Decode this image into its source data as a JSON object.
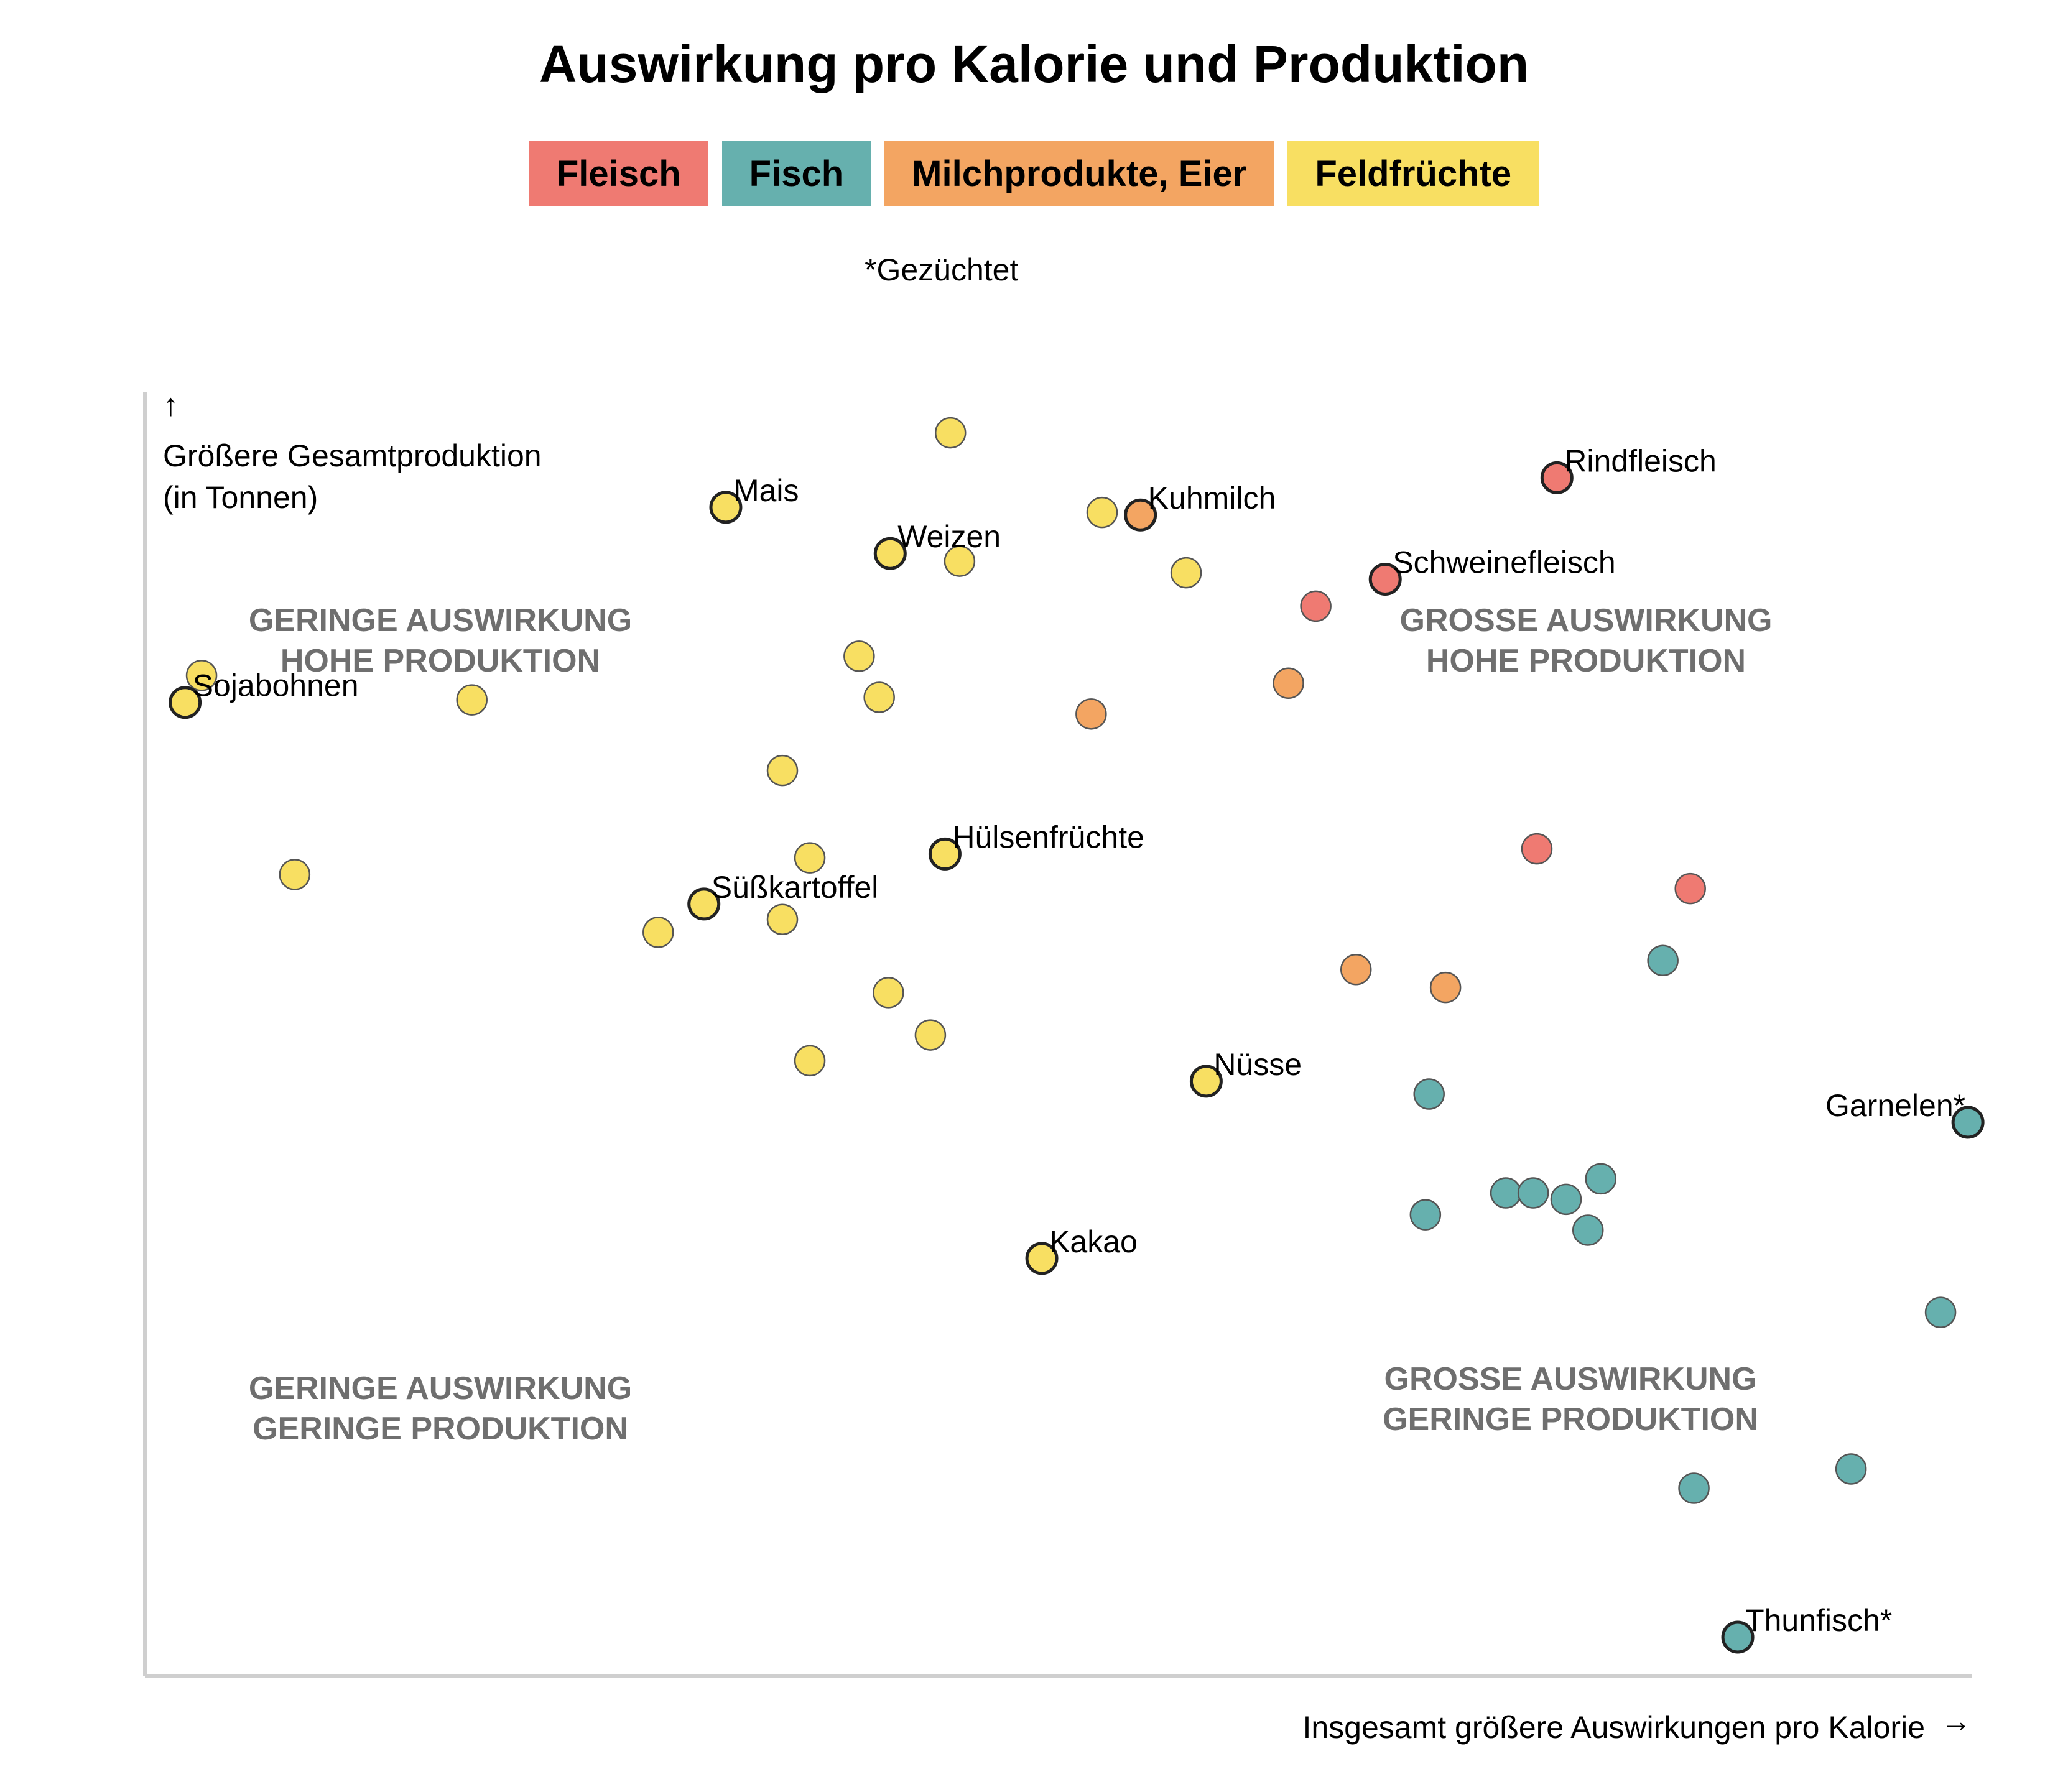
{
  "title": "Auswirkung pro Kalorie und Produktion",
  "legend": [
    {
      "label": "Fleisch",
      "color": "#ef7a72"
    },
    {
      "label": "Fisch",
      "color": "#66b0ae"
    },
    {
      "label": "Milchprodukte, Eier",
      "color": "#f3a562"
    },
    {
      "label": "Feldfrüchte",
      "color": "#f8df62"
    }
  ],
  "note": "*Gezüchtet",
  "y_axis_label_line1": "Größere Gesamtproduktion",
  "y_axis_label_line2": "(in Tonnen)",
  "x_axis_label": "Insgesamt größere Auswirkungen pro Kalorie",
  "quadrants": {
    "top_left": [
      "GERINGE AUSWIRKUNG",
      "HOHE PRODUKTION"
    ],
    "top_right": [
      "GROSSE AUSWIRKUNG",
      "HOHE PRODUKTION"
    ],
    "bottom_left": [
      "GERINGE AUSWIRKUNG",
      "GERINGE PRODUKTION"
    ],
    "bottom_right": [
      "GROSSE AUSWIRKUNG",
      "GERINGE PRODUKTION"
    ]
  },
  "chart_data": {
    "type": "scatter",
    "title": "Auswirkung pro Kalorie und Produktion",
    "xlabel": "Insgesamt größere Auswirkungen pro Kalorie",
    "ylabel": "Größere Gesamtproduktion (in Tonnen)",
    "xlim": [
      0,
      100
    ],
    "ylim": [
      0,
      100
    ],
    "grid": false,
    "legend_position": "top",
    "series": [
      {
        "name": "Fleisch",
        "color": "#ef7a72",
        "points": [
          {
            "x": 77.3,
            "y": 93.3,
            "label": "Rindfleisch"
          },
          {
            "x": 67.9,
            "y": 85.4,
            "label": "Schweinefleisch"
          },
          {
            "x": 64.1,
            "y": 83.3
          },
          {
            "x": 76.2,
            "y": 64.4
          },
          {
            "x": 84.6,
            "y": 61.3
          }
        ]
      },
      {
        "name": "Fisch",
        "color": "#66b0ae",
        "points": [
          {
            "x": 83.1,
            "y": 55.7
          },
          {
            "x": 70.3,
            "y": 45.3
          },
          {
            "x": 99.8,
            "y": 43.1,
            "label": "Garnelen*"
          },
          {
            "x": 79.7,
            "y": 38.7
          },
          {
            "x": 74.5,
            "y": 37.6
          },
          {
            "x": 76.0,
            "y": 37.6
          },
          {
            "x": 77.8,
            "y": 37.1
          },
          {
            "x": 70.1,
            "y": 35.9
          },
          {
            "x": 79.0,
            "y": 34.7
          },
          {
            "x": 98.3,
            "y": 28.3
          },
          {
            "x": 93.4,
            "y": 16.1
          },
          {
            "x": 84.8,
            "y": 14.6
          },
          {
            "x": 87.2,
            "y": 3.0,
            "label": "Thunfisch*"
          }
        ]
      },
      {
        "name": "Milchprodukte, Eier",
        "color": "#f3a562",
        "points": [
          {
            "x": 54.5,
            "y": 90.4,
            "label": "Kuhmilch"
          },
          {
            "x": 62.6,
            "y": 77.3
          },
          {
            "x": 51.8,
            "y": 74.9
          },
          {
            "x": 66.3,
            "y": 55.0
          },
          {
            "x": 71.2,
            "y": 53.6
          }
        ]
      },
      {
        "name": "Feldfrüchte",
        "color": "#f8df62",
        "points": [
          {
            "x": 44.1,
            "y": 96.8
          },
          {
            "x": 31.8,
            "y": 91.0,
            "label": "Mais"
          },
          {
            "x": 52.4,
            "y": 90.6
          },
          {
            "x": 40.8,
            "y": 87.4,
            "label": "Weizen"
          },
          {
            "x": 44.6,
            "y": 86.8
          },
          {
            "x": 57.0,
            "y": 85.9
          },
          {
            "x": 3.1,
            "y": 77.9
          },
          {
            "x": 39.1,
            "y": 79.4
          },
          {
            "x": 2.2,
            "y": 75.8,
            "label": "Sojabohnen"
          },
          {
            "x": 17.9,
            "y": 76.0
          },
          {
            "x": 40.2,
            "y": 76.2
          },
          {
            "x": 34.9,
            "y": 70.5
          },
          {
            "x": 36.4,
            "y": 63.7
          },
          {
            "x": 43.8,
            "y": 64.0,
            "label": "Hülsenfrüchte"
          },
          {
            "x": 8.2,
            "y": 62.4
          },
          {
            "x": 30.6,
            "y": 60.1,
            "label": "Süßkartoffel"
          },
          {
            "x": 34.9,
            "y": 58.9
          },
          {
            "x": 28.1,
            "y": 57.9
          },
          {
            "x": 40.7,
            "y": 53.2
          },
          {
            "x": 43.0,
            "y": 49.9
          },
          {
            "x": 36.4,
            "y": 47.9
          },
          {
            "x": 58.1,
            "y": 46.3,
            "label": "Nüsse"
          },
          {
            "x": 49.1,
            "y": 32.5,
            "label": "Kakao"
          }
        ]
      }
    ]
  }
}
